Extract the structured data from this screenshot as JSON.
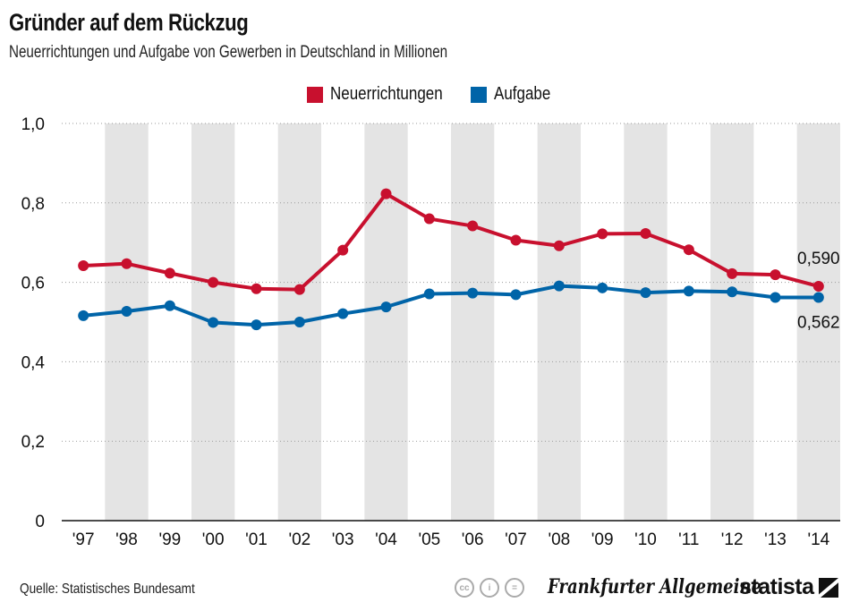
{
  "header": {
    "title": "Gründer auf dem Rückzug",
    "subtitle": "Neuerrichtungen und Aufgabe von Gewerben in Deutschland in Millionen"
  },
  "chart_data": {
    "type": "line",
    "title": "Gründer auf dem Rückzug",
    "subtitle": "Neuerrichtungen und Aufgabe von Gewerben in Deutschland in Millionen",
    "categories": [
      "'97",
      "'98",
      "'99",
      "'00",
      "'01",
      "'02",
      "'03",
      "'04",
      "'05",
      "'06",
      "'07",
      "'08",
      "'09",
      "'10",
      "'11",
      "'12",
      "'13",
      "'14"
    ],
    "ylim": [
      0,
      1.0
    ],
    "yticks": [
      0,
      0.2,
      0.4,
      0.6,
      0.8,
      1.0
    ],
    "ytick_labels": [
      "0",
      "0,2",
      "0,4",
      "0,6",
      "0,8",
      "1,0"
    ],
    "grid": true,
    "alternating_column_shading": true,
    "legend_position": "top-center",
    "series": [
      {
        "name": "Neuerrichtungen",
        "color": "#c8102e",
        "values": [
          0.642,
          0.647,
          0.623,
          0.6,
          0.584,
          0.582,
          0.681,
          0.823,
          0.76,
          0.742,
          0.706,
          0.692,
          0.722,
          0.723,
          0.682,
          0.622,
          0.619,
          0.59
        ],
        "end_label": "0,590"
      },
      {
        "name": "Aufgabe",
        "color": "#0064a8",
        "values": [
          0.516,
          0.527,
          0.541,
          0.499,
          0.493,
          0.5,
          0.521,
          0.538,
          0.571,
          0.573,
          0.569,
          0.591,
          0.586,
          0.574,
          0.578,
          0.576,
          0.562,
          0.562
        ],
        "end_label": "0,562"
      }
    ]
  },
  "footer": {
    "source": "Quelle: Statistisches Bundesamt",
    "cc_icons": [
      "cc",
      "i",
      "="
    ],
    "partner_logo": "Frankfurter Allgemeine",
    "brand_logo": "statista"
  }
}
